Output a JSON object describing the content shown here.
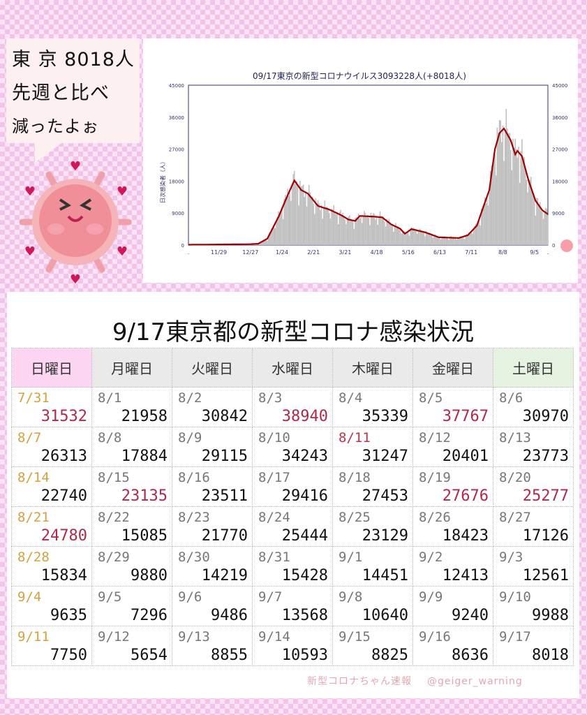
{
  "bubble": {
    "lines": [
      "東 京 8018人",
      "先週と比べ",
      "減ったよぉ"
    ]
  },
  "colors": {
    "sunday_date": "#d4a040",
    "holiday": "#c0304a",
    "highlight": "#b0284a",
    "avg_line": "#a00000",
    "bar": "#c0c0c0"
  },
  "chart_data": {
    "type": "bar",
    "title": "09/17東京の新型コロナウイルス3093228人(+8018人)",
    "ylabel": "日次感染者（人）",
    "ylim": [
      0,
      45000
    ],
    "yticks": [
      "0",
      "9000",
      "18000",
      "27000",
      "36000",
      "45000"
    ],
    "xticks": [
      ".",
      "11/29",
      "12/27",
      "1/24",
      "2/21",
      "3/21",
      "4/18",
      "5/16",
      "6/13",
      "7/11",
      "8/8",
      "9/5",
      "."
    ],
    "days": 319,
    "series": [
      {
        "name": "7-day average (line)",
        "points": [
          [
            0,
            100
          ],
          [
            55,
            250
          ],
          [
            62,
            400
          ],
          [
            70,
            1800
          ],
          [
            80,
            8000
          ],
          [
            88,
            14000
          ],
          [
            94,
            18200
          ],
          [
            100,
            15500
          ],
          [
            106,
            14500
          ],
          [
            115,
            11000
          ],
          [
            125,
            10000
          ],
          [
            135,
            8500
          ],
          [
            142,
            7200
          ],
          [
            148,
            6800
          ],
          [
            152,
            8200
          ],
          [
            165,
            8000
          ],
          [
            172,
            7800
          ],
          [
            180,
            5800
          ],
          [
            188,
            4600
          ],
          [
            192,
            3200
          ],
          [
            198,
            4500
          ],
          [
            210,
            3600
          ],
          [
            222,
            2200
          ],
          [
            240,
            2000
          ],
          [
            248,
            2800
          ],
          [
            256,
            5500
          ],
          [
            262,
            11000
          ],
          [
            267,
            15500
          ],
          [
            272,
            27000
          ],
          [
            276,
            31500
          ],
          [
            280,
            32800
          ],
          [
            286,
            29500
          ],
          [
            290,
            25500
          ],
          [
            292,
            26500
          ],
          [
            296,
            25000
          ],
          [
            302,
            18000
          ],
          [
            308,
            12500
          ],
          [
            314,
            9800
          ],
          [
            319,
            8700
          ]
        ]
      },
      {
        "name": "daily cases (bars)",
        "derived_from": "7-day average with weekly variation"
      }
    ]
  },
  "table": {
    "title": "9/17東京都の新型コロナ感染状況",
    "headers": [
      "日曜日",
      "月曜日",
      "火曜日",
      "水曜日",
      "木曜日",
      "金曜日",
      "土曜日"
    ],
    "rows": [
      [
        {
          "d": "7/31",
          "n": "31532",
          "dc": "sun",
          "nc": "red"
        },
        {
          "d": "8/1",
          "n": "21958"
        },
        {
          "d": "8/2",
          "n": "30842"
        },
        {
          "d": "8/3",
          "n": "38940",
          "nc": "red"
        },
        {
          "d": "8/4",
          "n": "35339"
        },
        {
          "d": "8/5",
          "n": "37767",
          "nc": "red"
        },
        {
          "d": "8/6",
          "n": "30970"
        }
      ],
      [
        {
          "d": "8/7",
          "n": "26313",
          "dc": "sun"
        },
        {
          "d": "8/8",
          "n": "17884"
        },
        {
          "d": "8/9",
          "n": "29115"
        },
        {
          "d": "8/10",
          "n": "34243"
        },
        {
          "d": "8/11",
          "n": "31247",
          "dc": "red"
        },
        {
          "d": "8/12",
          "n": "20401"
        },
        {
          "d": "8/13",
          "n": "23773"
        }
      ],
      [
        {
          "d": "8/14",
          "n": "22740",
          "dc": "sun"
        },
        {
          "d": "8/15",
          "n": "23135",
          "nc": "red"
        },
        {
          "d": "8/16",
          "n": "23511"
        },
        {
          "d": "8/17",
          "n": "29416"
        },
        {
          "d": "8/18",
          "n": "27453"
        },
        {
          "d": "8/19",
          "n": "27676",
          "nc": "red"
        },
        {
          "d": "8/20",
          "n": "25277",
          "nc": "red"
        }
      ],
      [
        {
          "d": "8/21",
          "n": "24780",
          "dc": "sun",
          "nc": "red"
        },
        {
          "d": "8/22",
          "n": "15085"
        },
        {
          "d": "8/23",
          "n": "21770"
        },
        {
          "d": "8/24",
          "n": "25444"
        },
        {
          "d": "8/25",
          "n": "23129"
        },
        {
          "d": "8/26",
          "n": "18423"
        },
        {
          "d": "8/27",
          "n": "17126"
        }
      ],
      [
        {
          "d": "8/28",
          "n": "15834",
          "dc": "sun"
        },
        {
          "d": "8/29",
          "n": "9880"
        },
        {
          "d": "8/30",
          "n": "14219"
        },
        {
          "d": "8/31",
          "n": "15428"
        },
        {
          "d": "9/1",
          "n": "14451"
        },
        {
          "d": "9/2",
          "n": "12413"
        },
        {
          "d": "9/3",
          "n": "12561"
        }
      ],
      [
        {
          "d": "9/4",
          "n": "9635",
          "dc": "sun"
        },
        {
          "d": "9/5",
          "n": "7296"
        },
        {
          "d": "9/6",
          "n": "9486"
        },
        {
          "d": "9/7",
          "n": "13568"
        },
        {
          "d": "9/8",
          "n": "10640"
        },
        {
          "d": "9/9",
          "n": "9240"
        },
        {
          "d": "9/10",
          "n": "9988"
        }
      ],
      [
        {
          "d": "9/11",
          "n": "7750",
          "dc": "sun"
        },
        {
          "d": "9/12",
          "n": "5654"
        },
        {
          "d": "9/13",
          "n": "8855"
        },
        {
          "d": "9/14",
          "n": "10593"
        },
        {
          "d": "9/15",
          "n": "8825"
        },
        {
          "d": "9/16",
          "n": "8636"
        },
        {
          "d": "9/17",
          "n": "8018"
        }
      ]
    ]
  },
  "credit": {
    "name": "新型コロナちゃん速報",
    "handle": "@geiger_warning"
  }
}
